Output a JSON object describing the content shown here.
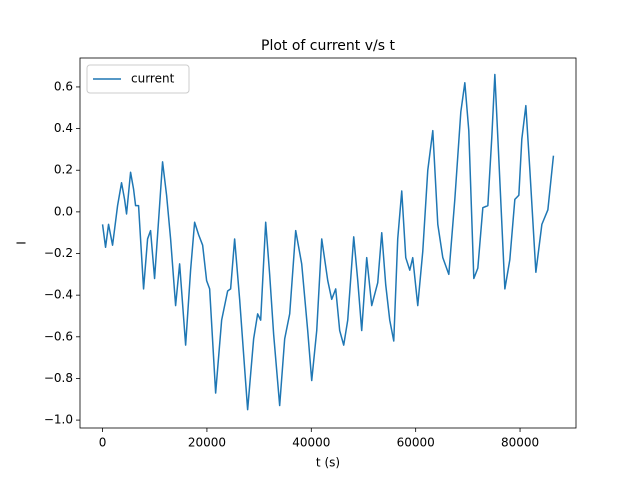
{
  "chart_data": {
    "type": "line",
    "title": "Plot of current v/s t",
    "xlabel": "t (s)",
    "ylabel": "I",
    "x": [
      0,
      575,
      1150,
      1920,
      2880,
      3640,
      4220,
      4600,
      5370,
      5940,
      6330,
      6900,
      7860,
      8630,
      9200,
      9970,
      10930,
      11500,
      12270,
      13040,
      14000,
      14770,
      15920,
      16870,
      17640,
      18410,
      19180,
      19940,
      20520,
      21670,
      22820,
      23970,
      24540,
      25310,
      26270,
      27800,
      28950,
      29720,
      30300,
      31260,
      32020,
      32790,
      33940,
      34900,
      35860,
      37010,
      38160,
      39310,
      40080,
      41040,
      42000,
      43150,
      43910,
      44680,
      45440,
      46210,
      46980,
      48130,
      48900,
      49660,
      50620,
      51580,
      52730,
      53500,
      54260,
      55030,
      55800,
      56560,
      57330,
      58100,
      58870,
      59440,
      60400,
      61360,
      62320,
      63280,
      64240,
      65200,
      66350,
      67500,
      68650,
      69420,
      70180,
      71140,
      71910,
      72870,
      73830,
      74590,
      75170,
      75940,
      77090,
      78040,
      79000,
      79770,
      80340,
      81110,
      81880,
      83030,
      84180,
      85330,
      86400
    ],
    "series": [
      {
        "name": "current",
        "color": "#1f77b4",
        "values": [
          -0.06,
          -0.17,
          -0.06,
          -0.16,
          0.03,
          0.14,
          0.06,
          -0.01,
          0.19,
          0.11,
          0.03,
          0.03,
          -0.37,
          -0.13,
          -0.09,
          -0.32,
          0.03,
          0.24,
          0.08,
          -0.13,
          -0.45,
          -0.25,
          -0.64,
          -0.28,
          -0.05,
          -0.11,
          -0.16,
          -0.33,
          -0.37,
          -0.87,
          -0.52,
          -0.38,
          -0.37,
          -0.13,
          -0.42,
          -0.95,
          -0.61,
          -0.49,
          -0.52,
          -0.05,
          -0.3,
          -0.59,
          -0.93,
          -0.61,
          -0.49,
          -0.09,
          -0.25,
          -0.57,
          -0.81,
          -0.57,
          -0.13,
          -0.33,
          -0.42,
          -0.37,
          -0.57,
          -0.64,
          -0.52,
          -0.12,
          -0.33,
          -0.57,
          -0.22,
          -0.45,
          -0.34,
          -0.1,
          -0.35,
          -0.52,
          -0.62,
          -0.13,
          0.1,
          -0.22,
          -0.28,
          -0.22,
          -0.45,
          -0.19,
          0.2,
          0.39,
          -0.06,
          -0.22,
          -0.3,
          0.06,
          0.48,
          0.62,
          0.39,
          -0.32,
          -0.27,
          0.02,
          0.03,
          0.36,
          0.66,
          0.25,
          -0.37,
          -0.23,
          0.06,
          0.08,
          0.35,
          0.51,
          0.2,
          -0.29,
          -0.06,
          0.01,
          0.27
        ]
      }
    ],
    "xlim": [
      -4320,
      90720
    ],
    "ylim": [
      -1.038,
      0.739
    ],
    "xticks": [
      0,
      20000,
      40000,
      60000,
      80000
    ],
    "yticks": [
      {
        "value": -1.0,
        "label": "−1.0"
      },
      {
        "value": -0.8,
        "label": "−0.8"
      },
      {
        "value": -0.6,
        "label": "−0.6"
      },
      {
        "value": -0.4,
        "label": "−0.4"
      },
      {
        "value": -0.2,
        "label": "−0.2"
      },
      {
        "value": 0.0,
        "label": "0.0"
      },
      0.2,
      0.4,
      0.6
    ],
    "legend": "upper left"
  }
}
